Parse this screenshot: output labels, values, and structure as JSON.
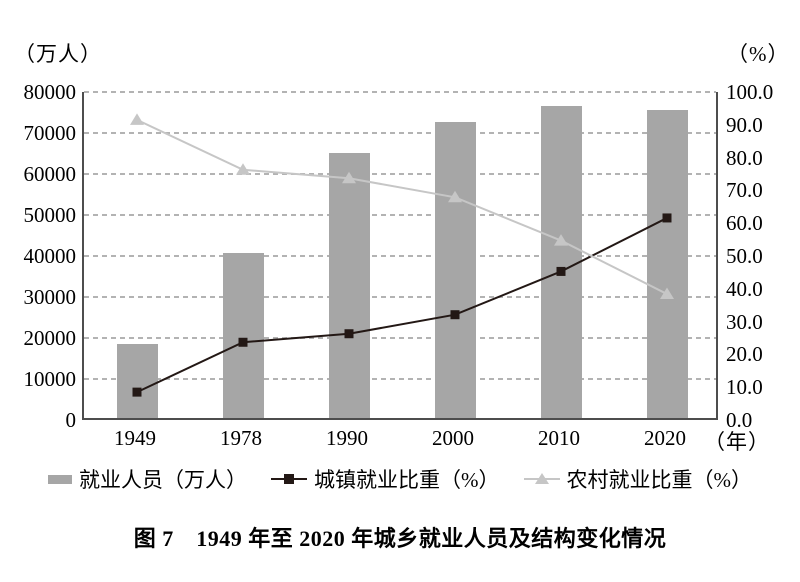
{
  "figure": {
    "title": "图 7　1949 年至 2020 年城乡就业人员及结构变化情况"
  },
  "colors": {
    "bar": "#a6a6a6",
    "urban_line": "#231815",
    "rural_line": "#c6c6c6",
    "gridline": "#b3b3b3",
    "axis": "#4d4d4d",
    "text": "#000000"
  },
  "chart_data": {
    "type": "bar",
    "subtype": "combo bar + two lines on secondary axis",
    "title": "图 7　1949 年至 2020 年城乡就业人员及结构变化情况",
    "categories": [
      "1949",
      "1978",
      "1990",
      "2000",
      "2010",
      "2020"
    ],
    "series": [
      {
        "name": "就业人员（万人）",
        "type": "bar",
        "axis": "left",
        "marker": "none",
        "values": [
          18082,
          40152,
          64749,
          72085,
          76105,
          75064
        ]
      },
      {
        "name": "城镇就业比重（%）",
        "type": "line",
        "axis": "right",
        "marker": "square",
        "values": [
          8.5,
          23.7,
          26.3,
          32.1,
          45.3,
          61.6
        ]
      },
      {
        "name": "农村就业比重（%）",
        "type": "line",
        "axis": "right",
        "marker": "triangle",
        "values": [
          91.5,
          76.3,
          73.7,
          67.9,
          54.7,
          38.4
        ]
      }
    ],
    "left_axis": {
      "label": "（万人）",
      "min": 0,
      "max": 80000,
      "ticks": [
        "0",
        "10000",
        "20000",
        "30000",
        "40000",
        "50000",
        "60000",
        "70000",
        "80000"
      ]
    },
    "right_axis": {
      "label": "（%）",
      "min": 0,
      "max": 100,
      "ticks": [
        "0.0",
        "10.0",
        "20.0",
        "30.0",
        "40.0",
        "50.0",
        "60.0",
        "70.0",
        "80.0",
        "90.0",
        "100.0"
      ]
    },
    "x_axis": {
      "label": "（年）"
    },
    "grid": {
      "horizontal": "dashed",
      "vertical": "none"
    },
    "legend_position": "bottom"
  }
}
